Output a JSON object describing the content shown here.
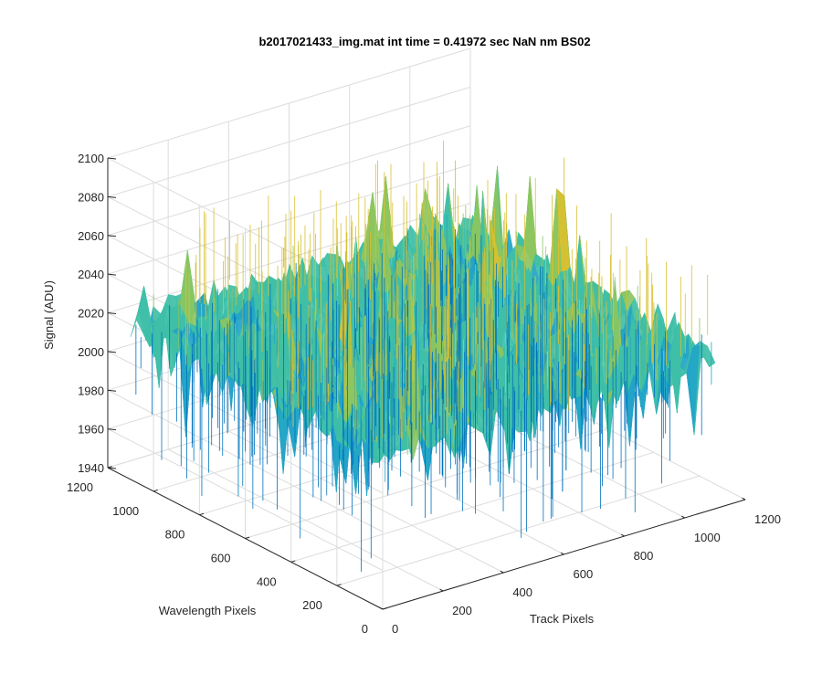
{
  "chart_data": {
    "type": "surface",
    "title": "b2017021433_img.mat int time = 0.41972 sec  NaN nm BS02",
    "xlabel": "Track Pixels",
    "ylabel": "Wavelength Pixels",
    "zlabel": "Signal (ADU)",
    "xlim": [
      0,
      1200
    ],
    "ylim": [
      0,
      1200
    ],
    "zlim": [
      1940,
      2100
    ],
    "xticks": [
      "0",
      "200",
      "400",
      "600",
      "800",
      "1000",
      "1200"
    ],
    "yticks": [
      "0",
      "200",
      "400",
      "600",
      "800",
      "1000",
      "1200"
    ],
    "zticks": [
      "1940",
      "1960",
      "1980",
      "2000",
      "2020",
      "2040",
      "2060",
      "2080",
      "2100"
    ],
    "surface": {
      "x_range": [
        0,
        1100
      ],
      "y_range": [
        0,
        1100
      ],
      "mean_signal": 2020,
      "min_signal": 1940,
      "max_signal": 2085,
      "colormap": [
        "#0072bd",
        "#22a4c8",
        "#3fbfa7",
        "#8cc55f",
        "#d9c030"
      ]
    },
    "grid": true
  }
}
